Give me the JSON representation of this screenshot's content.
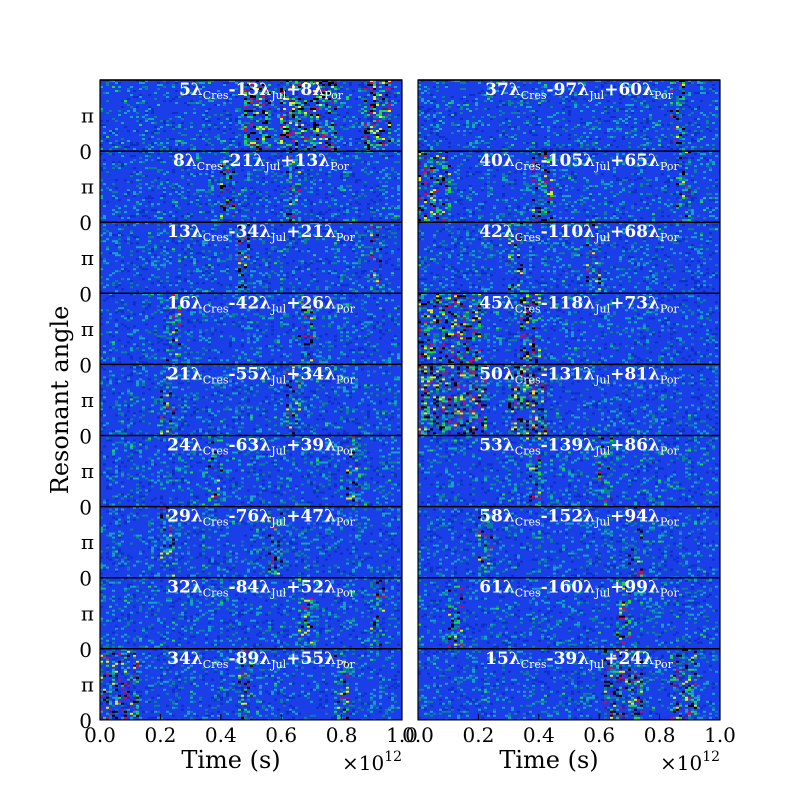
{
  "chart_data": {
    "type": "heatmap",
    "description_of_encoding": "",
    "x_axis": {
      "label": "Time (s)",
      "range": [
        0.0,
        1.0
      ],
      "ticks": [
        "0.0",
        "0.2",
        "0.4",
        "0.6",
        "0.8",
        "1.0"
      ],
      "multiplier": "×10",
      "multiplier_exponent": "12"
    },
    "y_axis": {
      "label": "Resonant angle",
      "tick_labels": [
        "0",
        "π"
      ]
    },
    "colors": {
      "background_blue": "#1a3ee8",
      "mid_blue": "#0d2fc8",
      "cyan": "#11a5c8",
      "teal": "#0c7f9a",
      "green": "#1fd64a",
      "yellow": "#e0f020",
      "purple": "#4a1e8c",
      "black": "#000000",
      "red": "#c01060"
    },
    "columns": [
      {
        "panels": [
          {
            "label": [
              "5",
              "Cres",
              "-13",
              "Jul",
              "+8",
              "Por"
            ],
            "dark_bands": [
              [
                0.48,
                0.56
              ],
              [
                0.6,
                0.78
              ],
              [
                0.88,
                0.96
              ]
            ],
            "intensity": 0.9
          },
          {
            "label": [
              "8",
              "Cres",
              "-21",
              "Jul",
              "+13",
              "Por"
            ],
            "dark_bands": [
              [
                0.4,
                0.44
              ],
              [
                0.62,
                0.66
              ]
            ],
            "intensity": 0.3
          },
          {
            "label": [
              "13",
              "Cres",
              "-34",
              "Jul",
              "+21",
              "Por"
            ],
            "dark_bands": [
              [
                0.46,
                0.49
              ],
              [
                0.9,
                0.93
              ]
            ],
            "intensity": 0.3
          },
          {
            "label": [
              "16",
              "Cres",
              "-42",
              "Jul",
              "+26",
              "Por"
            ],
            "dark_bands": [
              [
                0.22,
                0.26
              ],
              [
                0.66,
                0.7
              ]
            ],
            "intensity": 0.3
          },
          {
            "label": [
              "21",
              "Cres",
              "-55",
              "Jul",
              "+34",
              "Por"
            ],
            "dark_bands": [
              [
                0.2,
                0.24
              ],
              [
                0.62,
                0.66
              ]
            ],
            "intensity": 0.3
          },
          {
            "label": [
              "24",
              "Cres",
              "-63",
              "Jul",
              "+39",
              "Por"
            ],
            "dark_bands": [
              [
                0.36,
                0.4
              ],
              [
                0.82,
                0.86
              ]
            ],
            "intensity": 0.25
          },
          {
            "label": [
              "29",
              "Cres",
              "-76",
              "Jul",
              "+47",
              "Por"
            ],
            "dark_bands": [
              [
                0.2,
                0.24
              ],
              [
                0.56,
                0.6
              ]
            ],
            "intensity": 0.25
          },
          {
            "label": [
              "32",
              "Cres",
              "-84",
              "Jul",
              "+52",
              "Por"
            ],
            "dark_bands": [
              [
                0.66,
                0.7
              ],
              [
                0.9,
                0.94
              ]
            ],
            "intensity": 0.25
          },
          {
            "label": [
              "34",
              "Cres",
              "-89",
              "Jul",
              "+55",
              "Por"
            ],
            "dark_bands": [
              [
                0.0,
                0.12
              ],
              [
                0.46,
                0.5
              ],
              [
                0.78,
                0.82
              ]
            ],
            "intensity": 0.4
          }
        ]
      },
      {
        "panels": [
          {
            "label": [
              "37",
              "Cres",
              "-97",
              "Jul",
              "+60",
              "Por"
            ],
            "dark_bands": [
              [
                0.84,
                0.88
              ]
            ],
            "intensity": 0.3
          },
          {
            "label": [
              "40",
              "Cres",
              "-105",
              "Jul",
              "+65",
              "Por"
            ],
            "dark_bands": [
              [
                0.0,
                0.1
              ],
              [
                0.38,
                0.44
              ],
              [
                0.86,
                0.9
              ]
            ],
            "intensity": 0.45
          },
          {
            "label": [
              "42",
              "Cres",
              "-110",
              "Jul",
              "+68",
              "Por"
            ],
            "dark_bands": [
              [
                0.3,
                0.34
              ],
              [
                0.56,
                0.6
              ]
            ],
            "intensity": 0.3
          },
          {
            "label": [
              "45",
              "Cres",
              "-118",
              "Jul",
              "+73",
              "Por"
            ],
            "dark_bands": [
              [
                0.0,
                0.2
              ],
              [
                0.34,
                0.4
              ]
            ],
            "intensity": 0.7
          },
          {
            "label": [
              "50",
              "Cres",
              "-131",
              "Jul",
              "+81",
              "Por"
            ],
            "dark_bands": [
              [
                0.0,
                0.22
              ],
              [
                0.3,
                0.42
              ]
            ],
            "intensity": 0.85
          },
          {
            "label": [
              "53",
              "Cres",
              "-139",
              "Jul",
              "+86",
              "Por"
            ],
            "dark_bands": [
              [
                0.36,
                0.4
              ],
              [
                0.6,
                0.64
              ]
            ],
            "intensity": 0.25
          },
          {
            "label": [
              "58",
              "Cres",
              "-152",
              "Jul",
              "+94",
              "Por"
            ],
            "dark_bands": [
              [
                0.2,
                0.24
              ],
              [
                0.7,
                0.74
              ]
            ],
            "intensity": 0.25
          },
          {
            "label": [
              "61",
              "Cres",
              "-160",
              "Jul",
              "+99",
              "Por"
            ],
            "dark_bands": [
              [
                0.1,
                0.14
              ],
              [
                0.66,
                0.7
              ]
            ],
            "intensity": 0.25
          },
          {
            "label": [
              "15",
              "Cres",
              "-39",
              "Jul",
              "+24",
              "Por"
            ],
            "dark_bands": [
              [
                0.62,
                0.74
              ],
              [
                0.84,
                0.92
              ]
            ],
            "intensity": 0.6
          }
        ]
      }
    ]
  }
}
